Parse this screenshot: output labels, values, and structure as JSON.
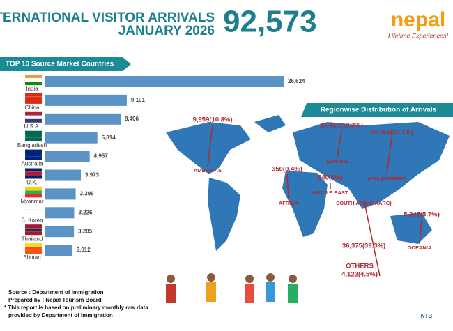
{
  "header": {
    "title_line1": "INTERNATIONAL VISITOR ARRIVALS",
    "title_line2": "JANUARY 2026",
    "total": "92,573",
    "brand": "nepal",
    "tagline": "Lifetime Experiences!"
  },
  "chart_data": {
    "type": "bar",
    "orientation": "horizontal",
    "title": "TOP 10 Source Market Countries",
    "categories": [
      "India",
      "China",
      "U.S.A.",
      "Bangladesh",
      "Australia",
      "U.K.",
      "Myanmar",
      "S. Korea",
      "Thailand",
      "Bhutan"
    ],
    "values": [
      26624,
      9101,
      8406,
      5814,
      4957,
      3973,
      3396,
      3226,
      3205,
      3012
    ],
    "value_labels": [
      "26,624",
      "9,101",
      "8,406",
      "5,814",
      "4,957",
      "3,973",
      "3,396",
      "3,226",
      "3,205",
      "3,012"
    ],
    "color": "#5b93c7"
  },
  "map": {
    "title": "Regionwise Distribution of Arrivals",
    "regions": [
      {
        "name": "AMERICAS",
        "figure": "9,959(10.8%)"
      },
      {
        "name": "EUROPE",
        "figure": "11,419(12.3%)"
      },
      {
        "name": "ASIA (OTHERS)",
        "figure": "24,161(26.1%)"
      },
      {
        "name": "AFRICA",
        "figure": "350(0.4%)"
      },
      {
        "name": "MIDDLE EAST",
        "figure": "940(1%)"
      },
      {
        "name": "SOUTH ASIA (SAARC)",
        "figure": "36,375(39.3%)"
      },
      {
        "name": "OCEANIA",
        "figure": "5,247(5.7%)"
      },
      {
        "name": "OTHERS",
        "figure": "4,122(4.5%)"
      }
    ]
  },
  "footer": {
    "source": "Source : Department of Immigration",
    "prepared": "Prepared by : Nepal Tourism Board",
    "note1": "* This report is based on preliminary monthly raw data",
    "note2": "provided by Department of Immigration",
    "logo": "NTB"
  }
}
